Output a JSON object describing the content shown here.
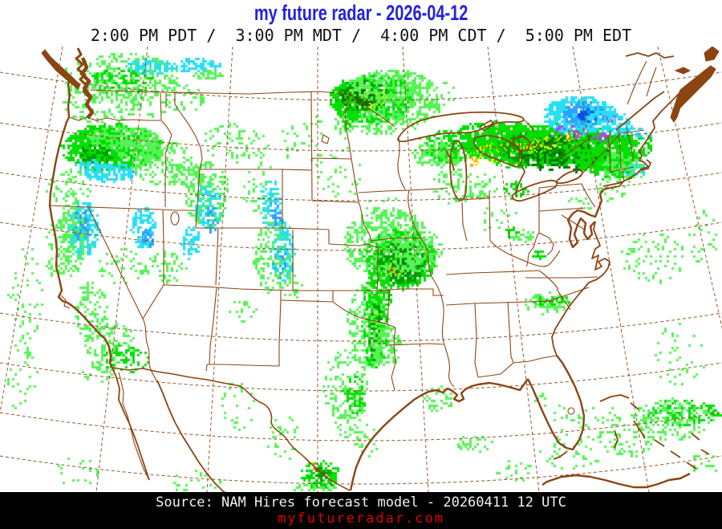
{
  "header": {
    "title": "my future radar - 2026-04-12",
    "times": "2:00 PM PDT /  3:00 PM MDT /  4:00 PM CDT /  5:00 PM EDT",
    "title_color": "#2222DD",
    "times_color": "#101010"
  },
  "footer": {
    "source": "Source: NAM Hires forecast model - 20260411 12 UTC",
    "site": "myfutureradar.com",
    "bg": "#000000",
    "source_color": "#F2F2F2",
    "site_color": "#DD0000"
  },
  "map": {
    "background": "#FFFFFF",
    "line_color": "#8B4513",
    "radar_palette": {
      "g1": "#55F355",
      "g2": "#00DF00",
      "g3": "#009C00",
      "g4": "#007000",
      "yl": "#FFF200",
      "or": "#FFA800",
      "rd": "#FF3000",
      "cy": "#27DFF5",
      "bl": "#2F9FFF",
      "b2": "#0050F0",
      "pu": "#A44BEB"
    },
    "radar_blobs": [
      [
        150,
        95,
        75,
        30,
        "g1",
        0.18,
        3
      ],
      [
        150,
        100,
        40,
        16,
        "g2",
        0.2,
        3
      ],
      [
        185,
        82,
        28,
        9,
        "cy",
        0.45,
        3
      ],
      [
        243,
        80,
        32,
        8,
        "cy",
        0.55,
        3
      ],
      [
        258,
        92,
        20,
        6,
        "g1",
        0.35,
        3
      ],
      [
        125,
        125,
        55,
        26,
        "g1",
        0.14,
        3
      ],
      [
        200,
        122,
        58,
        22,
        "g1",
        0.1,
        3
      ],
      [
        138,
        183,
        62,
        30,
        "g2",
        0.5,
        3
      ],
      [
        128,
        180,
        38,
        20,
        "g2",
        0.75,
        3
      ],
      [
        152,
        170,
        45,
        14,
        "g1",
        0.5,
        3
      ],
      [
        117,
        192,
        22,
        12,
        "g3",
        0.35,
        3
      ],
      [
        174,
        186,
        30,
        17,
        "g1",
        0.45,
        3
      ],
      [
        136,
        214,
        32,
        12,
        "cy",
        0.55,
        3
      ],
      [
        110,
        206,
        16,
        9,
        "cy",
        0.4,
        3
      ],
      [
        85,
        232,
        28,
        22,
        "g1",
        0.16,
        3
      ],
      [
        202,
        202,
        38,
        28,
        "g1",
        0.2,
        3
      ],
      [
        232,
        216,
        24,
        14,
        "g1",
        0.22,
        3
      ],
      [
        256,
        240,
        28,
        42,
        "g1",
        0.25,
        3
      ],
      [
        259,
        256,
        16,
        30,
        "cy",
        0.32,
        3
      ],
      [
        263,
        272,
        7,
        16,
        "bl",
        0.28,
        3
      ],
      [
        292,
        176,
        42,
        24,
        "g1",
        0.1,
        3
      ],
      [
        322,
        232,
        20,
        42,
        "g1",
        0.1,
        3
      ],
      [
        336,
        252,
        13,
        32,
        "cy",
        0.28,
        3
      ],
      [
        341,
        266,
        7,
        16,
        "bl",
        0.3,
        3
      ],
      [
        103,
        284,
        19,
        34,
        "cy",
        0.7,
        3
      ],
      [
        99,
        279,
        10,
        20,
        "bl",
        0.5,
        3
      ],
      [
        106,
        302,
        9,
        12,
        "yl",
        0.1,
        2
      ],
      [
        87,
        296,
        18,
        46,
        "g1",
        0.28,
        3
      ],
      [
        70,
        312,
        16,
        36,
        "g1",
        0.14,
        3
      ],
      [
        178,
        283,
        15,
        26,
        "cy",
        0.5,
        3
      ],
      [
        183,
        296,
        8,
        13,
        "bl",
        0.3,
        3
      ],
      [
        237,
        301,
        11,
        20,
        "cy",
        0.45,
        3
      ],
      [
        206,
        331,
        26,
        20,
        "g1",
        0.16,
        3
      ],
      [
        150,
        331,
        28,
        22,
        "g1",
        0.09,
        3
      ],
      [
        112,
        386,
        20,
        38,
        "g1",
        0.2,
        3
      ],
      [
        136,
        426,
        32,
        26,
        "g1",
        0.18,
        3
      ],
      [
        156,
        446,
        28,
        18,
        "g2",
        0.18,
        3
      ],
      [
        121,
        461,
        22,
        13,
        "g1",
        0.22,
        3
      ],
      [
        30,
        362,
        22,
        64,
        "g1",
        0.05,
        3
      ],
      [
        26,
        462,
        20,
        55,
        "g1",
        0.05,
        3
      ],
      [
        351,
        312,
        15,
        38,
        "cy",
        0.42,
        3
      ],
      [
        347,
        327,
        8,
        20,
        "bl",
        0.32,
        3
      ],
      [
        339,
        320,
        24,
        45,
        "g1",
        0.18,
        3
      ],
      [
        361,
        356,
        13,
        22,
        "g1",
        0.13,
        3
      ],
      [
        300,
        386,
        18,
        14,
        "g1",
        0.08,
        3
      ],
      [
        392,
        172,
        48,
        32,
        "g1",
        0.04,
        3
      ],
      [
        422,
        217,
        28,
        32,
        "g1",
        0.05,
        3
      ],
      [
        462,
        122,
        52,
        30,
        "g2",
        0.7,
        3
      ],
      [
        452,
        118,
        32,
        20,
        "g3",
        0.65,
        3
      ],
      [
        445,
        122,
        20,
        13,
        "g4",
        0.55,
        3
      ],
      [
        484,
        106,
        52,
        20,
        "g1",
        0.42,
        3
      ],
      [
        502,
        133,
        46,
        20,
        "g1",
        0.32,
        3
      ],
      [
        472,
        152,
        58,
        16,
        "g1",
        0.18,
        3
      ],
      [
        456,
        121,
        26,
        15,
        "yl",
        0.08,
        2
      ],
      [
        433,
        136,
        14,
        24,
        "g2",
        0.38,
        3
      ],
      [
        532,
        116,
        38,
        22,
        "g1",
        0.12,
        3
      ],
      [
        477,
        262,
        22,
        26,
        "g1",
        0.06,
        3
      ],
      [
        502,
        282,
        26,
        22,
        "g1",
        0.1,
        3
      ],
      [
        497,
        321,
        44,
        38,
        "g2",
        0.6,
        3
      ],
      [
        500,
        326,
        29,
        26,
        "g3",
        0.55,
        3
      ],
      [
        494,
        333,
        15,
        11,
        "g4",
        0.45,
        3
      ],
      [
        490,
        335,
        12,
        9,
        "yl",
        0.45,
        2
      ],
      [
        487,
        334,
        5,
        4,
        "or",
        0.6,
        2
      ],
      [
        481,
        302,
        54,
        44,
        "g1",
        0.28,
        3
      ],
      [
        521,
        311,
        32,
        27,
        "g1",
        0.26,
        3
      ],
      [
        470,
        366,
        18,
        28,
        "g2",
        0.32,
        3
      ],
      [
        468,
        371,
        10,
        18,
        "yl",
        0.1,
        2
      ],
      [
        465,
        409,
        15,
        48,
        "g2",
        0.5,
        3
      ],
      [
        467,
        413,
        9,
        40,
        "g3",
        0.42,
        3
      ],
      [
        469,
        416,
        6,
        33,
        "yl",
        0.1,
        2
      ],
      [
        458,
        406,
        26,
        55,
        "g1",
        0.22,
        3
      ],
      [
        481,
        431,
        18,
        28,
        "g1",
        0.22,
        3
      ],
      [
        428,
        479,
        28,
        43,
        "g1",
        0.13,
        3
      ],
      [
        432,
        511,
        20,
        36,
        "g1",
        0.16,
        3
      ],
      [
        442,
        491,
        13,
        23,
        "g2",
        0.28,
        3
      ],
      [
        351,
        546,
        20,
        32,
        "g1",
        0.07,
        3
      ],
      [
        398,
        590,
        24,
        17,
        "g2",
        0.42,
        3
      ],
      [
        400,
        588,
        11,
        8,
        "g3",
        0.38,
        3
      ],
      [
        393,
        583,
        4,
        3,
        "rd",
        0.8,
        2
      ],
      [
        388,
        580,
        5,
        4,
        "or",
        0.5,
        2
      ],
      [
        391,
        610,
        28,
        10,
        "g1",
        0.28,
        3
      ],
      [
        296,
        502,
        22,
        32,
        "g1",
        0.05,
        3
      ],
      [
        456,
        546,
        16,
        22,
        "g1",
        0.1,
        3
      ],
      [
        546,
        496,
        18,
        16,
        "g1",
        0.18,
        3
      ],
      [
        591,
        551,
        23,
        11,
        "g1",
        0.16,
        3
      ],
      [
        641,
        586,
        28,
        13,
        "g1",
        0.08,
        3
      ],
      [
        566,
        231,
        28,
        22,
        "g1",
        0.16,
        3
      ],
      [
        601,
        231,
        22,
        16,
        "g1",
        0.12,
        3
      ],
      [
        641,
        236,
        16,
        12,
        "g2",
        0.25,
        3
      ],
      [
        621,
        271,
        26,
        17,
        "g1",
        0.06,
        3
      ],
      [
        649,
        292,
        16,
        9,
        "g1",
        0.2,
        3
      ],
      [
        670,
        315,
        8,
        7,
        "g2",
        0.35,
        3
      ],
      [
        637,
        288,
        10,
        7,
        "g2",
        0.25,
        3
      ],
      [
        560,
        181,
        42,
        20,
        "g2",
        0.35,
        3
      ],
      [
        546,
        191,
        32,
        16,
        "g1",
        0.4,
        3
      ],
      [
        610,
        173,
        52,
        23,
        "g2",
        0.5,
        3
      ],
      [
        650,
        181,
        56,
        28,
        "g2",
        0.6,
        3
      ],
      [
        665,
        183,
        42,
        20,
        "g3",
        0.5,
        3
      ],
      [
        700,
        179,
        52,
        26,
        "g2",
        0.65,
        3
      ],
      [
        718,
        183,
        38,
        18,
        "g3",
        0.55,
        3
      ],
      [
        702,
        191,
        56,
        22,
        "g4",
        0.25,
        3
      ],
      [
        641,
        184,
        46,
        7,
        "yl",
        0.25,
        2
      ],
      [
        691,
        176,
        32,
        7,
        "yl",
        0.22,
        2
      ],
      [
        601,
        196,
        22,
        9,
        "yl",
        0.16,
        2
      ],
      [
        586,
        201,
        9,
        6,
        "or",
        0.35,
        2
      ],
      [
        746,
        186,
        42,
        28,
        "g2",
        0.55,
        3
      ],
      [
        761,
        196,
        33,
        26,
        "g2",
        0.45,
        3
      ],
      [
        776,
        206,
        26,
        20,
        "g1",
        0.4,
        3
      ],
      [
        791,
        181,
        22,
        16,
        "g2",
        0.35,
        3
      ],
      [
        722,
        143,
        46,
        24,
        "cy",
        0.65,
        3
      ],
      [
        728,
        141,
        28,
        15,
        "bl",
        0.6,
        3
      ],
      [
        733,
        143,
        13,
        8,
        "b2",
        0.45,
        3
      ],
      [
        756,
        151,
        28,
        14,
        "cy",
        0.45,
        3
      ],
      [
        776,
        161,
        14,
        9,
        "cy",
        0.4,
        3
      ],
      [
        706,
        163,
        22,
        9,
        "pu",
        0.2,
        3
      ],
      [
        749,
        169,
        13,
        7,
        "pu",
        0.28,
        3
      ],
      [
        762,
        146,
        9,
        5,
        "pu",
        0.28,
        2
      ],
      [
        711,
        169,
        11,
        6,
        "yl",
        0.28,
        2
      ],
      [
        791,
        211,
        13,
        9,
        "cy",
        0.28,
        3
      ],
      [
        801,
        166,
        11,
        7,
        "cy",
        0.28,
        3
      ],
      [
        761,
        236,
        18,
        13,
        "g1",
        0.12,
        3
      ],
      [
        721,
        251,
        18,
        10,
        "g1",
        0.08,
        3
      ],
      [
        687,
        373,
        22,
        9,
        "g2",
        0.32,
        3
      ],
      [
        681,
        376,
        28,
        13,
        "g1",
        0.26,
        3
      ],
      [
        813,
        321,
        42,
        32,
        "g1",
        0.08,
        3
      ],
      [
        876,
        296,
        18,
        36,
        "g1",
        0.07,
        3
      ],
      [
        846,
        441,
        32,
        42,
        "g1",
        0.04,
        3
      ],
      [
        851,
        513,
        46,
        16,
        "g2",
        0.3,
        3
      ],
      [
        836,
        521,
        52,
        26,
        "g1",
        0.18,
        3
      ],
      [
        781,
        546,
        38,
        22,
        "g1",
        0.1,
        3
      ],
      [
        711,
        561,
        42,
        22,
        "g1",
        0.06,
        3
      ],
      [
        746,
        521,
        28,
        18,
        "g1",
        0.08,
        3
      ],
      [
        876,
        576,
        18,
        13,
        "g1",
        0.12,
        3
      ],
      [
        701,
        521,
        13,
        18,
        "g1",
        0.07,
        3
      ],
      [
        673,
        501,
        9,
        11,
        "g1",
        0.08,
        3
      ],
      [
        241,
        599,
        36,
        13,
        "g1",
        0.07,
        3
      ],
      [
        92,
        586,
        32,
        18,
        "g1",
        0.04,
        3
      ]
    ]
  }
}
